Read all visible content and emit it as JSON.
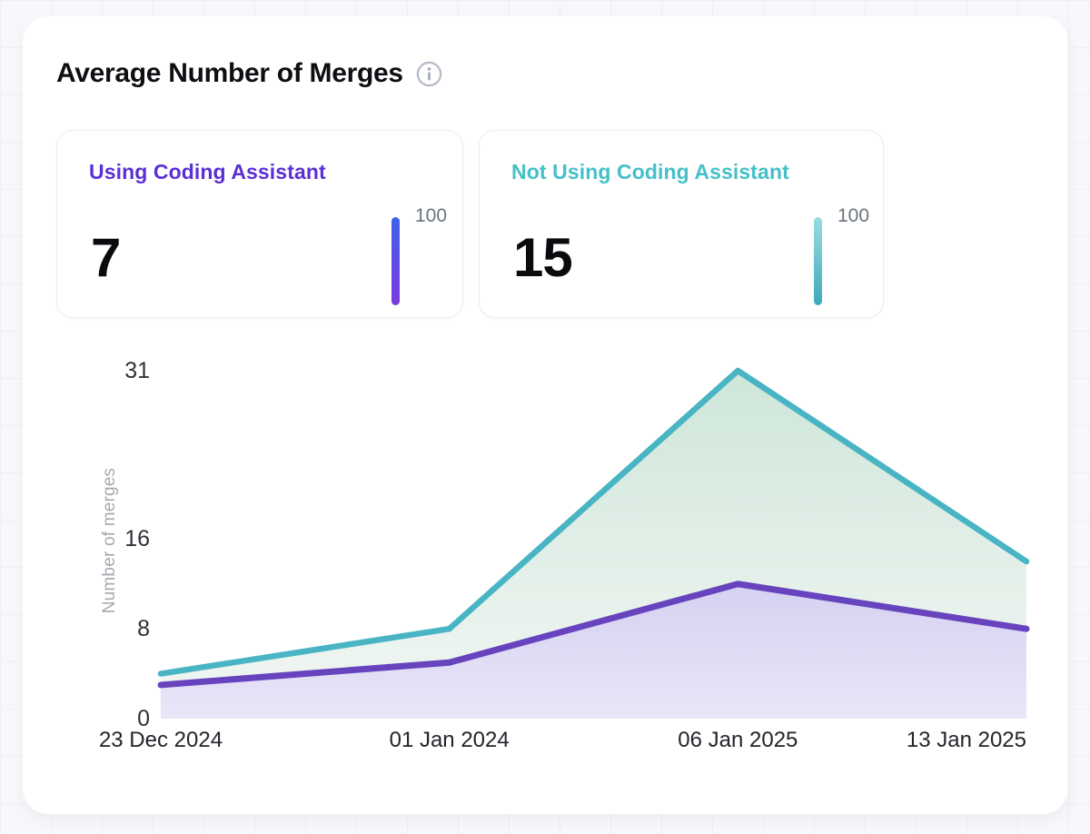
{
  "header": {
    "title": "Average Number of Merges"
  },
  "stat_cards": [
    {
      "label": "Using Coding Assistant",
      "value": "7",
      "scale_label": "100",
      "accent_color": "#5B2FD6",
      "bar_gradient": [
        "#3F62E9",
        "#7B3AE0"
      ]
    },
    {
      "label": "Not Using Coding Assistant",
      "value": "15",
      "scale_label": "100",
      "accent_color": "#45C0C8",
      "bar_gradient": [
        "#97DEDF",
        "#3FA9BC"
      ]
    }
  ],
  "chart_data": {
    "type": "area",
    "title": "Average Number of Merges",
    "x": [
      "23 Dec 2024",
      "01 Jan 2024",
      "06 Jan 2025",
      "13 Jan 2025"
    ],
    "series": [
      {
        "name": "Using Coding Assistant",
        "values": [
          3,
          5,
          12,
          8
        ],
        "color": "#6744BE",
        "fill_top": "#D5D1F1",
        "fill_bottom": "#E9E6F8",
        "stroke_width": 7
      },
      {
        "name": "Not Using Coding Assistant",
        "values": [
          4,
          8,
          31,
          14
        ],
        "color": "#49B4C4",
        "fill_top": "#CEE6DA",
        "fill_bottom": "#F3F7F4",
        "stroke_width": 6.5
      }
    ],
    "draw_order": [
      1,
      0
    ],
    "ylabel": "Number of merges",
    "xlabel": "",
    "yticks": [
      0,
      8,
      16,
      31
    ],
    "ylim": [
      0,
      31
    ],
    "grid": false,
    "legend_position": "none"
  }
}
